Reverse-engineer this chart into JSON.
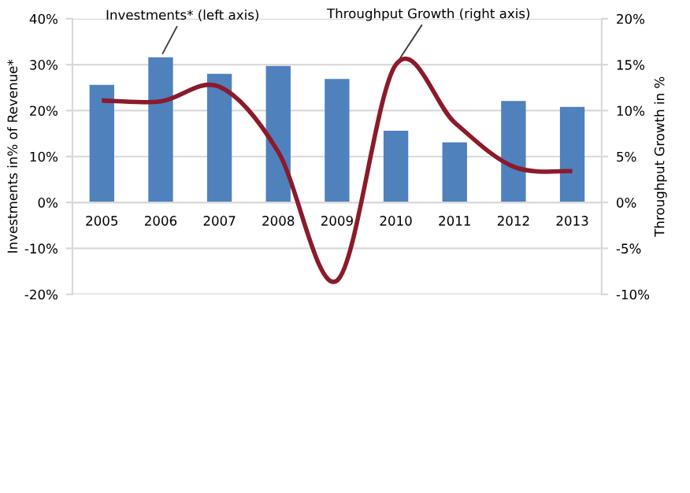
{
  "chart_data": {
    "type": "bar",
    "categories": [
      "2005",
      "2006",
      "2007",
      "2008",
      "2009",
      "2010",
      "2011",
      "2012",
      "2013"
    ],
    "ylabel": "Investments in% of Revenue*",
    "y2label": "Throughput Growth in %",
    "ylim": [
      -20,
      40
    ],
    "yticks": [
      {
        "value": -20,
        "label": "-20%"
      },
      {
        "value": -10,
        "label": "-10%"
      },
      {
        "value": 0,
        "label": "0%"
      },
      {
        "value": 10,
        "label": "10%"
      },
      {
        "value": 20,
        "label": "20%"
      },
      {
        "value": 30,
        "label": "30%"
      },
      {
        "value": 40,
        "label": "40%"
      }
    ],
    "y2lim": [
      -10,
      20
    ],
    "y2ticks": [
      {
        "value": -10,
        "label": "-10%"
      },
      {
        "value": -5,
        "label": "-5%"
      },
      {
        "value": 0,
        "label": "0%"
      },
      {
        "value": 5,
        "label": "5%"
      },
      {
        "value": 10,
        "label": "10%"
      },
      {
        "value": 15,
        "label": "15%"
      },
      {
        "value": 20,
        "label": "20%"
      }
    ],
    "grid": "y",
    "legend": false,
    "series": [
      {
        "color": "#4f81bd",
        "values": [
          25.6,
          31.6,
          28.0,
          29.7,
          26.9,
          15.6,
          13.1,
          22.1,
          20.8
        ]
      },
      {
        "type": "line",
        "axis": "y2",
        "color": "#8b1a2b",
        "line_style": "solid",
        "marker": "none",
        "values": [
          11.1,
          11.0,
          12.6,
          5.5,
          -8.5,
          15.0,
          8.7,
          3.9,
          3.4
        ]
      }
    ],
    "annotations": [
      {
        "text": "Investments* (left axis)",
        "x": "2006",
        "y": 31.6
      },
      {
        "text": "Throughput Growth (right axis)",
        "x": "2010",
        "y": 30
      }
    ]
  }
}
